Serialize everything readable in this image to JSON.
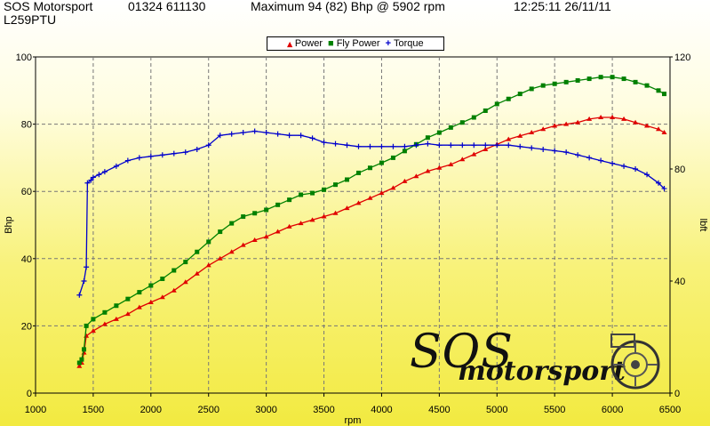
{
  "header": {
    "company": "SOS Motorsport",
    "phone": "01324 611130",
    "summary": "Maximum 94 (82) Bhp @ 5902 rpm",
    "datetime": "12:25:11 26/11/11",
    "registration": "L259PTU"
  },
  "logo": {
    "line1": "SOS",
    "line2": "motorsport"
  },
  "chart_data": {
    "type": "line",
    "xlabel": "rpm",
    "ylabel_left": "Bhp",
    "ylabel_right": "lbft",
    "xlim": [
      1000,
      6500
    ],
    "ylim_left": [
      0,
      100
    ],
    "ylim_right": [
      0,
      120
    ],
    "x_ticks": [
      1000,
      1500,
      2000,
      2500,
      3000,
      3500,
      4000,
      4500,
      5000,
      5500,
      6000,
      6500
    ],
    "y_ticks_left": [
      0,
      20,
      40,
      60,
      80,
      100
    ],
    "y_ticks_right": [
      0,
      40,
      80,
      120
    ],
    "grid": true,
    "legend_position": "top-center",
    "series": [
      {
        "name": "Power",
        "color": "#e00000",
        "marker": "triangle",
        "axis": "left",
        "points": [
          [
            1380,
            8
          ],
          [
            1400,
            9
          ],
          [
            1420,
            12
          ],
          [
            1440,
            17
          ],
          [
            1500,
            18.5
          ],
          [
            1600,
            20.5
          ],
          [
            1700,
            22
          ],
          [
            1800,
            23.5
          ],
          [
            1900,
            25.5
          ],
          [
            2000,
            27
          ],
          [
            2100,
            28.5
          ],
          [
            2200,
            30.5
          ],
          [
            2300,
            33
          ],
          [
            2400,
            35.5
          ],
          [
            2500,
            38
          ],
          [
            2600,
            40
          ],
          [
            2700,
            42
          ],
          [
            2800,
            44
          ],
          [
            2900,
            45.5
          ],
          [
            3000,
            46.5
          ],
          [
            3100,
            48
          ],
          [
            3200,
            49.5
          ],
          [
            3300,
            50.5
          ],
          [
            3400,
            51.5
          ],
          [
            3500,
            52.5
          ],
          [
            3600,
            53.5
          ],
          [
            3700,
            55
          ],
          [
            3800,
            56.5
          ],
          [
            3900,
            58
          ],
          [
            4000,
            59.5
          ],
          [
            4100,
            61
          ],
          [
            4200,
            63
          ],
          [
            4300,
            64.5
          ],
          [
            4400,
            66
          ],
          [
            4500,
            67
          ],
          [
            4600,
            68
          ],
          [
            4700,
            69.5
          ],
          [
            4800,
            71
          ],
          [
            4900,
            72.5
          ],
          [
            5000,
            74
          ],
          [
            5100,
            75.5
          ],
          [
            5200,
            76.5
          ],
          [
            5300,
            77.5
          ],
          [
            5400,
            78.5
          ],
          [
            5500,
            79.5
          ],
          [
            5600,
            80
          ],
          [
            5700,
            80.5
          ],
          [
            5800,
            81.5
          ],
          [
            5900,
            82
          ],
          [
            6000,
            82
          ],
          [
            6100,
            81.5
          ],
          [
            6200,
            80.5
          ],
          [
            6300,
            79.5
          ],
          [
            6400,
            78.5
          ],
          [
            6450,
            77.5
          ]
        ]
      },
      {
        "name": "Fly Power",
        "color": "#008000",
        "marker": "square",
        "axis": "left",
        "points": [
          [
            1380,
            9
          ],
          [
            1400,
            10
          ],
          [
            1420,
            13
          ],
          [
            1440,
            20
          ],
          [
            1500,
            22
          ],
          [
            1600,
            24
          ],
          [
            1700,
            26
          ],
          [
            1800,
            28
          ],
          [
            1900,
            30
          ],
          [
            2000,
            32
          ],
          [
            2100,
            34
          ],
          [
            2200,
            36.5
          ],
          [
            2300,
            39
          ],
          [
            2400,
            42
          ],
          [
            2500,
            45
          ],
          [
            2600,
            48
          ],
          [
            2700,
            50.5
          ],
          [
            2800,
            52.5
          ],
          [
            2900,
            53.5
          ],
          [
            3000,
            54.5
          ],
          [
            3100,
            56
          ],
          [
            3200,
            57.5
          ],
          [
            3300,
            59
          ],
          [
            3400,
            59.5
          ],
          [
            3500,
            60.5
          ],
          [
            3600,
            62
          ],
          [
            3700,
            63.5
          ],
          [
            3800,
            65.5
          ],
          [
            3900,
            67
          ],
          [
            4000,
            68.5
          ],
          [
            4100,
            70
          ],
          [
            4200,
            72
          ],
          [
            4300,
            74
          ],
          [
            4400,
            76
          ],
          [
            4500,
            77.5
          ],
          [
            4600,
            79
          ],
          [
            4700,
            80.5
          ],
          [
            4800,
            82
          ],
          [
            4900,
            84
          ],
          [
            5000,
            86
          ],
          [
            5100,
            87.5
          ],
          [
            5200,
            89
          ],
          [
            5300,
            90.5
          ],
          [
            5400,
            91.5
          ],
          [
            5500,
            92
          ],
          [
            5600,
            92.5
          ],
          [
            5700,
            93
          ],
          [
            5800,
            93.5
          ],
          [
            5900,
            94
          ],
          [
            6000,
            94
          ],
          [
            6100,
            93.5
          ],
          [
            6200,
            92.5
          ],
          [
            6300,
            91.5
          ],
          [
            6400,
            90
          ],
          [
            6450,
            89
          ]
        ]
      },
      {
        "name": "Torque",
        "color": "#0000cc",
        "marker": "plus",
        "axis": "right",
        "points": [
          [
            1380,
            35
          ],
          [
            1420,
            40
          ],
          [
            1440,
            45
          ],
          [
            1450,
            75
          ],
          [
            1480,
            76
          ],
          [
            1500,
            77
          ],
          [
            1550,
            78
          ],
          [
            1600,
            79
          ],
          [
            1700,
            81
          ],
          [
            1800,
            83
          ],
          [
            1900,
            84
          ],
          [
            2000,
            84.5
          ],
          [
            2100,
            85
          ],
          [
            2200,
            85.5
          ],
          [
            2300,
            86
          ],
          [
            2400,
            87
          ],
          [
            2500,
            88.5
          ],
          [
            2600,
            92
          ],
          [
            2700,
            92.5
          ],
          [
            2800,
            93
          ],
          [
            2900,
            93.5
          ],
          [
            3000,
            93
          ],
          [
            3100,
            92.5
          ],
          [
            3200,
            92
          ],
          [
            3300,
            92
          ],
          [
            3400,
            91
          ],
          [
            3500,
            89.5
          ],
          [
            3600,
            89
          ],
          [
            3700,
            88.5
          ],
          [
            3800,
            88
          ],
          [
            3900,
            88
          ],
          [
            4000,
            88
          ],
          [
            4100,
            88
          ],
          [
            4200,
            88
          ],
          [
            4300,
            88.5
          ],
          [
            4400,
            89
          ],
          [
            4500,
            88.5
          ],
          [
            4600,
            88.5
          ],
          [
            4700,
            88.5
          ],
          [
            4800,
            88.5
          ],
          [
            4900,
            88.5
          ],
          [
            5000,
            88.5
          ],
          [
            5100,
            88.5
          ],
          [
            5200,
            88
          ],
          [
            5300,
            87.5
          ],
          [
            5400,
            87
          ],
          [
            5500,
            86.5
          ],
          [
            5600,
            86
          ],
          [
            5700,
            85
          ],
          [
            5800,
            84
          ],
          [
            5900,
            83
          ],
          [
            6000,
            82
          ],
          [
            6100,
            81
          ],
          [
            6200,
            80
          ],
          [
            6300,
            78
          ],
          [
            6400,
            75
          ],
          [
            6450,
            73
          ]
        ]
      }
    ]
  }
}
